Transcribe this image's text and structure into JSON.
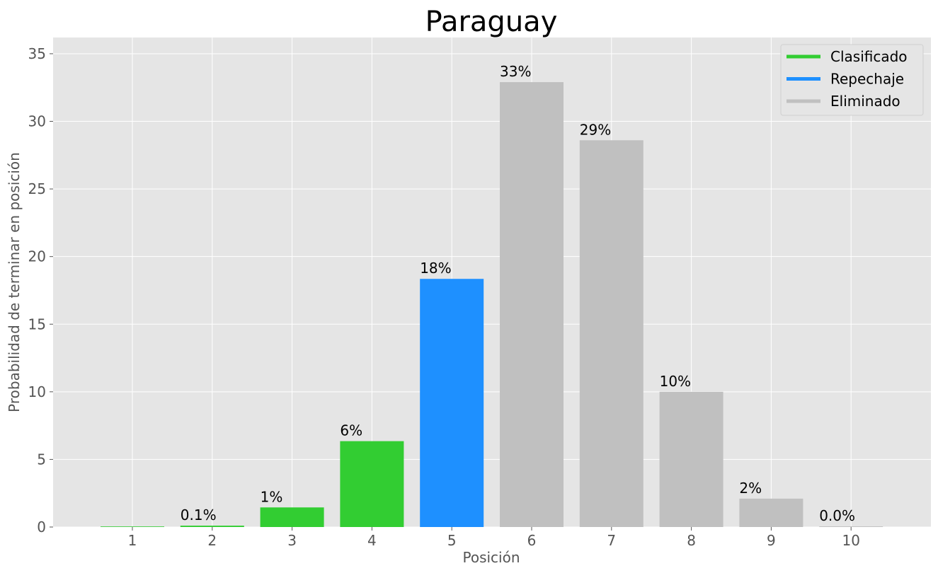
{
  "chart_data": {
    "type": "bar",
    "title": "Paraguay",
    "xlabel": "Posición",
    "ylabel": "Probabilidad de terminar en posición",
    "categories": [
      "1",
      "2",
      "3",
      "4",
      "5",
      "6",
      "7",
      "8",
      "9",
      "10"
    ],
    "values": [
      0,
      0.1,
      1.45,
      6.35,
      18.35,
      32.9,
      28.6,
      10.0,
      2.1,
      0.05
    ],
    "labels": [
      "",
      "0.1%",
      "1%",
      "6%",
      "18%",
      "33%",
      "29%",
      "10%",
      "2%",
      "0.0%"
    ],
    "statuses": [
      "Clasificado",
      "Clasificado",
      "Clasificado",
      "Clasificado",
      "Repechaje",
      "Eliminado",
      "Eliminado",
      "Eliminado",
      "Eliminado",
      "Eliminado"
    ],
    "ylim": [
      0,
      36.2
    ],
    "yticks": [
      0,
      5,
      10,
      15,
      20,
      25,
      30,
      35
    ],
    "grid": true,
    "legend": {
      "position": "top-right",
      "entries": [
        {
          "label": "Clasificado",
          "color": "#32cd32"
        },
        {
          "label": "Repechaje",
          "color": "#1e90ff"
        },
        {
          "label": "Eliminado",
          "color": "#c0c0c0"
        }
      ]
    },
    "colors": {
      "Clasificado": "#32cd32",
      "Repechaje": "#1e90ff",
      "Eliminado": "#c0c0c0",
      "background": "#e5e5e5",
      "grid": "#ffffff"
    }
  }
}
